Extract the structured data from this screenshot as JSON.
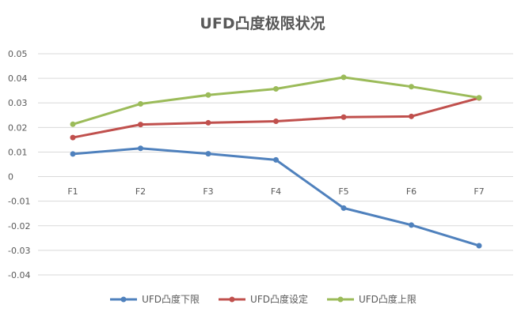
{
  "chart_data": {
    "type": "line",
    "title": "UFD凸度极限状况",
    "categories": [
      "F1",
      "F2",
      "F3",
      "F4",
      "F5",
      "F6",
      "F7"
    ],
    "ylim": [
      -0.04,
      0.05
    ],
    "yticks": [
      "0.05",
      "0.04",
      "0.03",
      "0.02",
      "0.01",
      "0",
      "-0.01",
      "-0.02",
      "-0.03",
      "-0.04"
    ],
    "grid": true,
    "legend_position": "bottom",
    "series": [
      {
        "name": "UFD凸度下限",
        "color": "#4F81BD",
        "values": [
          0.0092,
          0.0115,
          0.0093,
          0.0068,
          -0.0128,
          -0.0197,
          -0.0281
        ]
      },
      {
        "name": "UFD凸度设定",
        "color": "#C0504D",
        "values": [
          0.0159,
          0.0212,
          0.0219,
          0.0225,
          0.0242,
          0.0245,
          0.032
        ]
      },
      {
        "name": "UFD凸度上限",
        "color": "#9BBB59",
        "values": [
          0.0213,
          0.0296,
          0.0332,
          0.0357,
          0.0404,
          0.0366,
          0.0321
        ]
      }
    ]
  }
}
